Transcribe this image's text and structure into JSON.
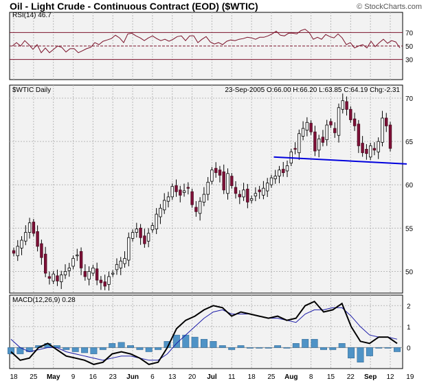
{
  "header": {
    "title": "Oil - Light Crude - Continuous Contract (EOD) ($WTIC)",
    "copyright": "© StockCharts.com"
  },
  "chart_data": [
    {
      "type": "line",
      "panel": "rsi",
      "label": "RSI(14)",
      "last_value": "46.7",
      "ylim": [
        0,
        100
      ],
      "levels": [
        70,
        50,
        30
      ],
      "yticks": [
        "70",
        "50",
        "30"
      ],
      "values": [
        50,
        55,
        50,
        58,
        52,
        45,
        52,
        40,
        47,
        40,
        45,
        50,
        48,
        41,
        46,
        46,
        40,
        43,
        46,
        48,
        55,
        52,
        57,
        59,
        61,
        66,
        62,
        55,
        68,
        69,
        65,
        62,
        58,
        62,
        65,
        61,
        58,
        60,
        57,
        60,
        64,
        65,
        58,
        65,
        65,
        55,
        60,
        64,
        56,
        53,
        55,
        52,
        57,
        59,
        58,
        60,
        61,
        63,
        62,
        60,
        63,
        63,
        65,
        68,
        72,
        66,
        65,
        69,
        69,
        68,
        73,
        75,
        70,
        60,
        63,
        60,
        67,
        64,
        62,
        68,
        62,
        52,
        55,
        47,
        50,
        52,
        47,
        57,
        49,
        55,
        60,
        54,
        58,
        56,
        47
      ]
    },
    {
      "type": "candlestick",
      "panel": "price",
      "symbol": "$WTIC Daily",
      "info": {
        "date": "23-Sep-2005",
        "open": "66.00",
        "high": "66.20",
        "low": "63.85",
        "close": "64.19",
        "change": "-2.31"
      },
      "ylim": [
        47.5,
        71.5
      ],
      "yticks": [
        "70",
        "65",
        "60",
        "55",
        "50"
      ],
      "x_tick_labels": [
        "18",
        "25",
        "May",
        "9",
        "16",
        "23",
        "Jun",
        "6",
        "13",
        "20",
        "Jul",
        "11",
        "18",
        "25",
        "Aug",
        "8",
        "15",
        "22",
        "Sep",
        "12",
        "19"
      ],
      "closes": [
        52.1,
        52.9,
        53.6,
        54.5,
        55.6,
        54.4,
        52.9,
        51.6,
        49.8,
        49.2,
        49.7,
        48.9,
        49.6,
        50.0,
        50.4,
        51.5,
        51.9,
        50.4,
        49.4,
        50.0,
        50.4,
        49.0,
        48.7,
        48.3,
        49.4,
        49.8,
        50.8,
        51.2,
        51.5,
        53.9,
        54.5,
        54.9,
        53.9,
        53.2,
        54.4,
        55.3,
        56.6,
        57.3,
        58.2,
        58.6,
        59.8,
        59.2,
        58.8,
        59.3,
        59.6,
        57.7,
        56.9,
        58.1,
        58.9,
        60.3,
        61.7,
        61.4,
        61.1,
        59.4,
        61.3,
        59.9,
        59.0,
        58.6,
        59.4,
        58.0,
        58.4,
        59.0,
        59.2,
        59.6,
        60.2,
        60.8,
        61.0,
        61.7,
        61.4,
        62.2,
        63.8,
        64.1,
        65.9,
        66.5,
        67.2,
        66.1,
        63.9,
        65.3,
        64.9,
        66.9,
        66.9,
        66.0,
        68.9,
        69.7,
        68.7,
        67.5,
        66.8,
        64.5,
        63.7,
        63.6,
        64.5,
        64.0,
        65.0,
        67.7,
        66.8,
        64.2
      ],
      "support_line": {
        "from": [
          96,
          63.2
        ],
        "to": [
          138,
          62.4
        ]
      }
    },
    {
      "type": "line",
      "panel": "macd",
      "label": "MACD(12,26,9)",
      "last_value": "0.28",
      "ylim": [
        -1.0,
        2.5
      ],
      "yticks": [
        "2",
        "1",
        "0"
      ],
      "series": [
        {
          "name": "MACD",
          "values": [
            -0.2,
            -0.6,
            -0.5,
            0.0,
            0.2,
            -0.1,
            -0.4,
            -0.5,
            -0.6,
            -0.8,
            -0.7,
            -0.3,
            -0.2,
            -0.3,
            -0.5,
            -0.8,
            -0.7,
            0.0,
            0.9,
            1.3,
            1.5,
            1.8,
            2.0,
            1.9,
            1.5,
            1.7,
            1.6,
            1.5,
            1.4,
            1.5,
            1.3,
            1.4,
            2.0,
            2.2,
            1.7,
            1.8,
            2.1,
            1.0,
            0.3,
            0.2,
            0.5,
            0.5,
            0.2
          ]
        },
        {
          "name": "Signal",
          "values": [
            0.4,
            0.0,
            -0.2,
            -0.1,
            0.0,
            0.0,
            -0.2,
            -0.3,
            -0.4,
            -0.5,
            -0.6,
            -0.5,
            -0.4,
            -0.4,
            -0.5,
            -0.6,
            -0.6,
            -0.3,
            0.2,
            0.6,
            1.0,
            1.4,
            1.7,
            1.8,
            1.6,
            1.6,
            1.6,
            1.5,
            1.4,
            1.4,
            1.3,
            1.2,
            1.6,
            1.8,
            1.8,
            1.9,
            1.9,
            1.5,
            1.0,
            0.6,
            0.5,
            0.5,
            0.4
          ]
        }
      ],
      "histogram": [
        -0.3,
        -0.3,
        -0.2,
        0.1,
        0.2,
        0.1,
        -0.1,
        -0.2,
        -0.25,
        -0.3,
        -0.1,
        0.2,
        0.25,
        0.1,
        -0.1,
        -0.2,
        -0.1,
        0.3,
        0.6,
        0.6,
        0.5,
        0.4,
        0.3,
        0.1,
        -0.1,
        0.1,
        0.0,
        0.0,
        0.0,
        0.1,
        0.0,
        0.2,
        0.4,
        0.4,
        -0.1,
        -0.1,
        0.2,
        -0.5,
        -0.7,
        -0.4,
        0.0,
        0.0,
        -0.2
      ]
    }
  ]
}
